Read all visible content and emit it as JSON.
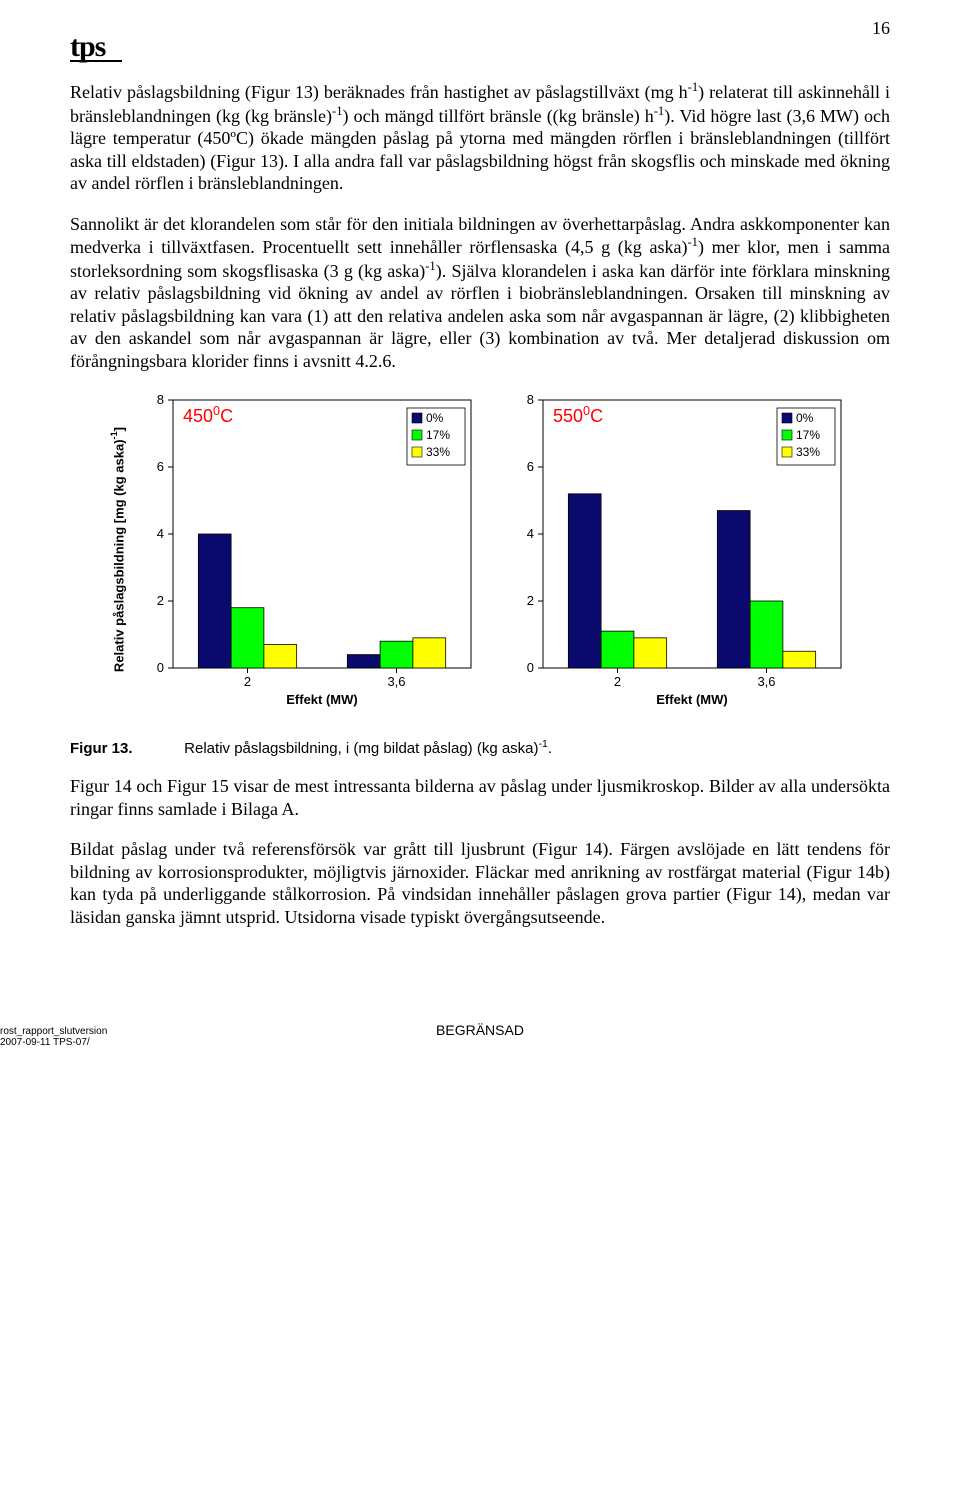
{
  "page_number": "16",
  "logo_text": "tps",
  "paragraphs": {
    "p1_html": "Relativ påslagsbildning (Figur 13) beräknades från hastighet av påslagstillväxt (mg h<sup>-1</sup>) relaterat till askinnehåll i bränsleblandningen (kg (kg bränsle)<sup>-1</sup>) och mängd tillfört bränsle ((kg bränsle) h<sup>-1</sup>). Vid högre last (3,6 MW) och lägre temperatur (450ºC) ökade mängden påslag på ytorna med mängden rörflen i bränsleblandningen (tillfört aska till eldstaden) (Figur 13). I alla andra fall var påslagsbildning högst från skogsflis och minskade med ökning av andel rörflen i bränsleblandningen.",
    "p2_html": "Sannolikt är det klorandelen som står för den initiala bildningen av överhettarpåslag. Andra askkomponenter kan medverka i tillväxtfasen. Procentuellt sett innehåller rörflensaska (4,5 g (kg aska)<sup>-1</sup>) mer klor, men i samma storleksordning som skogsflisaska (3 g (kg aska)<sup>-1</sup>). Själva klorandelen i aska kan därför inte förklara minskning av relativ påslagsbildning vid ökning av andel av rörflen i biobränsleblandningen. Orsaken till minskning av relativ påslagsbildning kan vara (1) att den relativa andelen aska som når avgaspannan är lägre, (2) klibbigheten av den askandel som når avgaspannan är lägre, eller (3) kombination av två. Mer detaljerad diskussion om förångningsbara klorider finns i avsnitt 4.2.6.",
    "p3_html": "Figur 14 och Figur 15 visar de mest intressanta bilderna av påslag under ljusmikroskop. Bilder av alla undersökta ringar finns samlade i Bilaga A.",
    "p4_html": "Bildat påslag under två referensförsök var grått till ljusbrunt (Figur 14). Färgen avslöjade en lätt tendens för bildning av korrosionsprodukter, möjligtvis järnoxider. Fläckar med anrikning av rostfärgat material (Figur 14b) kan tyda på underliggande stålkorrosion. På vindsidan innehåller påslagen grova partier (Figur 14), medan var läsidan ganska jämnt utsprid. Utsidorna visade typiskt övergångsutseende."
  },
  "figure_caption": {
    "number": "Figur 13.",
    "text_html": "Relativ påslagsbildning, i (mg bildat påslag) (kg aska)<sup>-1</sup>."
  },
  "y_axis_label_html": "Relativ påslagsbildning [mg (kg aska)<sup>-1</sup>]",
  "legend": {
    "items": [
      {
        "label": "0%",
        "color": "#0a0a6e"
      },
      {
        "label": "17%",
        "color": "#00ff00"
      },
      {
        "label": "33%",
        "color": "#ffff00"
      }
    ],
    "border_color": "#000000"
  },
  "chart_common": {
    "y_min": 0,
    "y_max": 8,
    "y_ticks": [
      0,
      2,
      4,
      6,
      8
    ],
    "x_categories": [
      "2",
      "3,6"
    ],
    "x_axis_title": "Effekt (MW)",
    "tick_font": "Arial",
    "tick_fontsize": 13,
    "axis_color": "#000000",
    "bar_outline": "#000000",
    "panel_fill": "#ffffff",
    "title_color": "#ff0000",
    "title_fontsize": 18
  },
  "charts": [
    {
      "title_html": "450<sup>0</sup>C",
      "groups": [
        {
          "x_label": "2",
          "values": [
            4.0,
            1.8,
            0.7
          ]
        },
        {
          "x_label": "3,6",
          "values": [
            0.4,
            0.8,
            0.9
          ]
        }
      ]
    },
    {
      "title_html": "550<sup>0</sup>C",
      "groups": [
        {
          "x_label": "2",
          "values": [
            5.2,
            1.1,
            0.9
          ]
        },
        {
          "x_label": "3,6",
          "values": [
            4.7,
            2.0,
            0.5
          ]
        }
      ]
    }
  ],
  "footer": {
    "left_line1": "rost_rapport_slutversion",
    "left_line2": "2007-09-11 TPS-07/",
    "center": "BEGRÄNSAD"
  }
}
